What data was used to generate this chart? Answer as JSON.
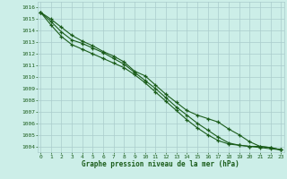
{
  "background_color": "#cceee8",
  "grid_color": "#aacccc",
  "line_color": "#1a5c1a",
  "xlabel": "Graphe pression niveau de la mer (hPa)",
  "xlim": [
    -0.3,
    23.3
  ],
  "ylim": [
    1003.5,
    1016.5
  ],
  "yticks": [
    1004,
    1005,
    1006,
    1007,
    1008,
    1009,
    1010,
    1011,
    1012,
    1013,
    1014,
    1015,
    1016
  ],
  "xticks": [
    0,
    1,
    2,
    3,
    4,
    5,
    6,
    7,
    8,
    9,
    10,
    11,
    12,
    13,
    14,
    15,
    16,
    17,
    18,
    19,
    20,
    21,
    22,
    23
  ],
  "series": [
    [
      1015.6,
      1015.0,
      1014.3,
      1013.6,
      1013.1,
      1012.7,
      1012.2,
      1011.8,
      1011.3,
      1010.5,
      1010.1,
      1009.3,
      1008.5,
      1007.8,
      1007.1,
      1006.7,
      1006.4,
      1006.1,
      1005.5,
      1005.0,
      1004.4,
      1004.0,
      1003.9,
      1003.7
    ],
    [
      1015.6,
      1014.8,
      1013.9,
      1013.2,
      1012.9,
      1012.5,
      1012.1,
      1011.6,
      1011.1,
      1010.4,
      1009.7,
      1009.0,
      1008.2,
      1007.4,
      1006.7,
      1006.0,
      1005.4,
      1004.8,
      1004.3,
      1004.1,
      1004.0,
      1004.0,
      1003.9,
      1003.7
    ],
    [
      1015.6,
      1014.5,
      1013.5,
      1012.8,
      1012.4,
      1012.0,
      1011.6,
      1011.2,
      1010.8,
      1010.2,
      1009.5,
      1008.7,
      1007.9,
      1007.1,
      1006.3,
      1005.6,
      1005.0,
      1004.5,
      1004.2,
      1004.1,
      1004.0,
      1003.9,
      1003.8,
      1003.7
    ]
  ]
}
